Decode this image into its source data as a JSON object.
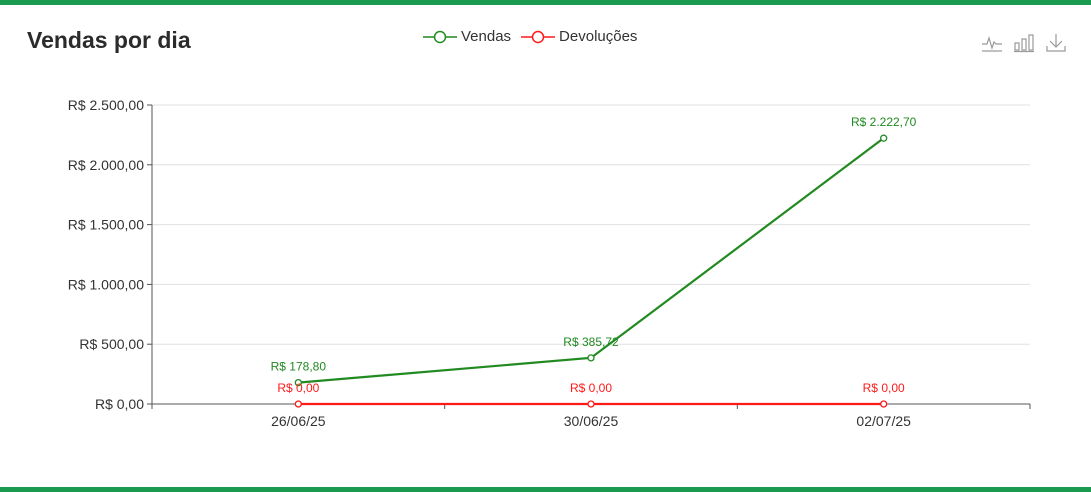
{
  "header": {
    "title": "Vendas por dia"
  },
  "toolbox": {
    "icons": [
      "line-chart-icon",
      "bar-chart-icon",
      "download-icon"
    ],
    "color": "#9a9a9a"
  },
  "colors": {
    "accent": "#1a9a4f",
    "vendas": "#218a21",
    "devolucoes": "#ff1a1a",
    "grid": "#e0e0e0"
  },
  "chart_data": {
    "type": "line",
    "title": "Vendas por dia",
    "x": [
      "26/06/25",
      "30/06/25",
      "02/07/25"
    ],
    "ylim": [
      0,
      2500
    ],
    "yticks": [
      "R$ 0,00",
      "R$ 500,00",
      "R$ 1.000,00",
      "R$ 1.500,00",
      "R$ 2.000,00",
      "R$ 2.500,00"
    ],
    "ytick_values": [
      0,
      500,
      1000,
      1500,
      2000,
      2500
    ],
    "grid": true,
    "legend_position": "top-center",
    "series": [
      {
        "name": "Vendas",
        "values": [
          178.8,
          385.72,
          2222.7
        ],
        "labels": [
          "R$ 178,80",
          "R$ 385,72",
          "R$ 2.222,70"
        ]
      },
      {
        "name": "Devoluções",
        "values": [
          0,
          0,
          0
        ],
        "labels": [
          "R$ 0,00",
          "R$ 0,00",
          "R$ 0,00"
        ]
      }
    ]
  }
}
